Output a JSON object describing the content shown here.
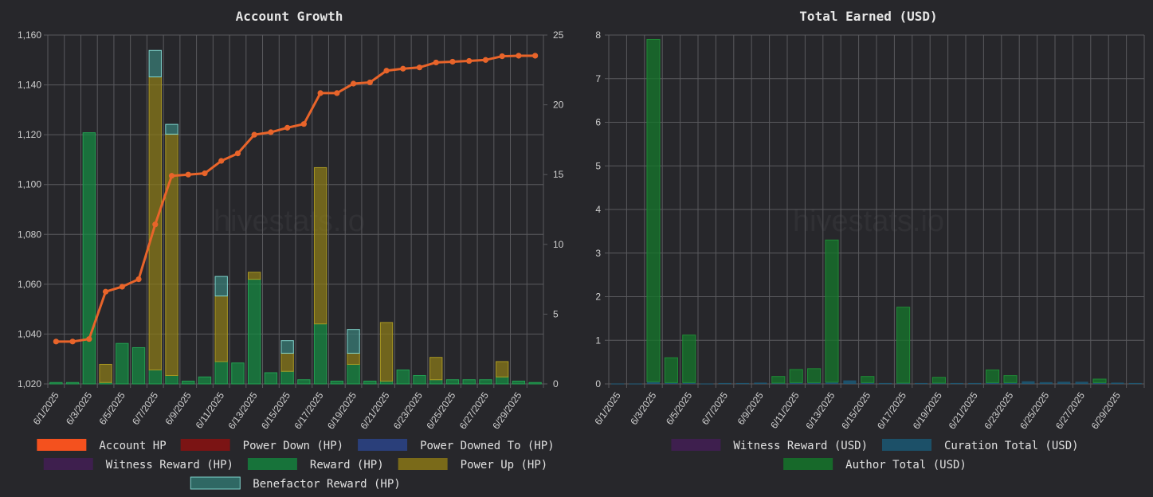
{
  "watermark": "hivestats.io",
  "charts": [
    {
      "title": "Account Growth",
      "dates": [
        "6/1/2025",
        "6/2/2025",
        "6/3/2025",
        "6/4/2025",
        "6/5/2025",
        "6/6/2025",
        "6/7/2025",
        "6/8/2025",
        "6/9/2025",
        "6/10/2025",
        "6/11/2025",
        "6/12/2025",
        "6/13/2025",
        "6/14/2025",
        "6/15/2025",
        "6/16/2025",
        "6/17/2025",
        "6/18/2025",
        "6/19/2025",
        "6/20/2025",
        "6/21/2025",
        "6/22/2025",
        "6/23/2025",
        "6/24/2025",
        "6/25/2025",
        "6/26/2025",
        "6/27/2025",
        "6/28/2025",
        "6/29/2025",
        "6/30/2025"
      ],
      "x_tick_labels": [
        "6/1/2025",
        "6/3/2025",
        "6/5/2025",
        "6/7/2025",
        "6/9/2025",
        "6/11/2025",
        "6/13/2025",
        "6/15/2025",
        "6/17/2025",
        "6/19/2025",
        "6/21/2025",
        "6/23/2025",
        "6/25/2025",
        "6/27/2025",
        "6/29/2025"
      ],
      "y_left_ticks": [
        "1,020",
        "1,040",
        "1,060",
        "1,080",
        "1,100",
        "1,120",
        "1,140",
        "1,160"
      ],
      "y_left_range": [
        1020,
        1160
      ],
      "y_right_ticks": [
        "0",
        "5",
        "10",
        "15",
        "20",
        "25"
      ],
      "y_right_range": [
        0,
        25
      ],
      "legend": [
        {
          "label": "Account HP",
          "color": "#f4511e"
        },
        {
          "label": "Power Down (HP)",
          "color": "#7b1414"
        },
        {
          "label": "Power Downed To (HP)",
          "color": "#2a3f7a"
        },
        {
          "label": "Witness Reward (HP)",
          "color": "#3e1f4e"
        },
        {
          "label": "Reward (HP)",
          "color": "#17733a"
        },
        {
          "label": "Power Up (HP)",
          "color": "#7a6a19"
        },
        {
          "label": "Benefactor Reward (HP)",
          "color": "#2f6864"
        }
      ],
      "series": {
        "account_hp": [
          1037,
          1037,
          1038,
          1057,
          1059,
          1062,
          1084,
          1103.5,
          1104,
          1104.5,
          1109.5,
          1112.5,
          1120,
          1121,
          1122.8,
          1124.3,
          1136.7,
          1136.7,
          1140.5,
          1141,
          1145.7,
          1146.5,
          1147,
          1149,
          1149.3,
          1149.6,
          1150,
          1151.5,
          1151.7,
          1151.7
        ],
        "reward_hp": [
          0.1,
          0.1,
          18.0,
          0.1,
          2.9,
          2.6,
          1.0,
          0.6,
          0.2,
          0.5,
          1.6,
          1.5,
          7.5,
          0.8,
          0.9,
          0.3,
          4.3,
          0.2,
          1.4,
          0.2,
          0.2,
          1.0,
          0.6,
          0.3,
          0.3,
          0.3,
          0.3,
          0.5,
          0.2,
          0.1
        ],
        "power_up_hp": [
          0,
          0,
          0,
          1.3,
          0,
          0,
          21.0,
          17.3,
          0,
          0,
          4.7,
          0,
          0.5,
          0,
          1.3,
          0,
          11.2,
          0,
          0.8,
          0,
          4.2,
          0,
          0,
          1.6,
          0,
          0,
          0,
          1.1,
          0,
          0
        ],
        "benefactor_hp": [
          0,
          0,
          0,
          0,
          0,
          0,
          1.9,
          0.7,
          0,
          0,
          1.4,
          0,
          0,
          0,
          0.9,
          0,
          0,
          0,
          1.7,
          0,
          0,
          0,
          0,
          0,
          0,
          0,
          0,
          0,
          0,
          0
        ]
      }
    },
    {
      "title": "Total Earned (USD)",
      "dates": [
        "6/1/2025",
        "6/2/2025",
        "6/3/2025",
        "6/4/2025",
        "6/5/2025",
        "6/6/2025",
        "6/7/2025",
        "6/8/2025",
        "6/9/2025",
        "6/10/2025",
        "6/11/2025",
        "6/12/2025",
        "6/13/2025",
        "6/14/2025",
        "6/15/2025",
        "6/16/2025",
        "6/17/2025",
        "6/18/2025",
        "6/19/2025",
        "6/20/2025",
        "6/21/2025",
        "6/22/2025",
        "6/23/2025",
        "6/24/2025",
        "6/25/2025",
        "6/26/2025",
        "6/27/2025",
        "6/28/2025",
        "6/29/2025",
        "6/30/2025"
      ],
      "x_tick_labels": [
        "6/1/2025",
        "6/3/2025",
        "6/5/2025",
        "6/7/2025",
        "6/9/2025",
        "6/11/2025",
        "6/13/2025",
        "6/15/2025",
        "6/17/2025",
        "6/19/2025",
        "6/21/2025",
        "6/23/2025",
        "6/25/2025",
        "6/27/2025",
        "6/29/2025"
      ],
      "y_ticks": [
        "0",
        "1",
        "2",
        "3",
        "4",
        "5",
        "6",
        "7",
        "8"
      ],
      "y_range": [
        0,
        8
      ],
      "legend": [
        {
          "label": "Witness Reward (USD)",
          "color": "#3e1f4e"
        },
        {
          "label": "Curation Total (USD)",
          "color": "#1c5068"
        },
        {
          "label": "Author Total (USD)",
          "color": "#17692a"
        }
      ],
      "series": {
        "curation_usd": [
          0.01,
          0.01,
          0.05,
          0.03,
          0.03,
          0.01,
          0.02,
          0.02,
          0.03,
          0.02,
          0.03,
          0.03,
          0.04,
          0.08,
          0.03,
          0.02,
          0.02,
          0.02,
          0.02,
          0.02,
          0.02,
          0.03,
          0.03,
          0.06,
          0.04,
          0.05,
          0.05,
          0.03,
          0.03,
          0.02
        ],
        "author_usd": [
          0,
          0,
          7.85,
          0.57,
          1.09,
          0,
          0,
          0,
          0,
          0.15,
          0.3,
          0.32,
          3.26,
          0,
          0.14,
          0,
          1.74,
          0,
          0.13,
          0,
          0,
          0.29,
          0.16,
          0,
          0,
          0,
          0,
          0.08,
          0,
          0
        ]
      }
    }
  ]
}
